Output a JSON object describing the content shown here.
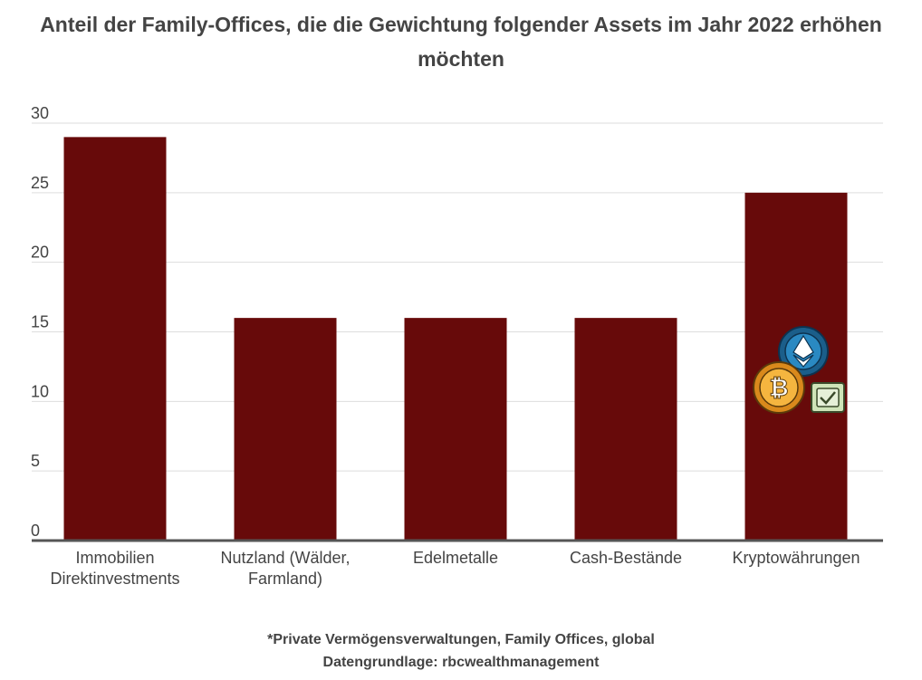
{
  "chart_data": {
    "type": "bar",
    "title": "Anteil der Family-Offices, die die Gewichtung folgender Assets im Jahr 2022 erhöhen möchten",
    "categories": [
      [
        "Immobilien",
        "Direktinvestments"
      ],
      [
        "Nutzland (Wälder,",
        "Farmland)"
      ],
      [
        "Edelmetalle"
      ],
      [
        "Cash-Bestände"
      ],
      [
        "Kryptowährungen"
      ]
    ],
    "values": [
      29,
      16,
      16,
      16,
      25
    ],
    "ylim": [
      0,
      30
    ],
    "yticks": [
      0,
      5,
      10,
      15,
      20,
      25,
      30
    ],
    "xlabel": "",
    "ylabel": "",
    "grid": true,
    "bar_color": "#670a0a",
    "annotations": [
      "crypto-coins-illustration on Kryptowährungen bar"
    ]
  },
  "footer": {
    "note": "*Private Vermögensverwaltungen, Family Offices, global",
    "source": "Datengrundlage: rbcwealthmanagement"
  },
  "colors": {
    "bar": "#670a0a",
    "grid": "#dddddd",
    "axis": "#555555",
    "text": "#444444"
  }
}
